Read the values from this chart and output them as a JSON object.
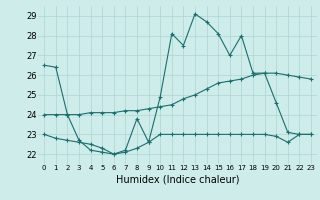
{
  "title": "",
  "xlabel": "Humidex (Indice chaleur)",
  "ylabel": "",
  "background_color": "#ceecea",
  "grid_color": "#aed4d2",
  "line_color": "#1a6e6e",
  "x_ticks": [
    0,
    1,
    2,
    3,
    4,
    5,
    6,
    7,
    8,
    9,
    10,
    11,
    12,
    13,
    14,
    15,
    16,
    17,
    18,
    19,
    20,
    21,
    22,
    23
  ],
  "ylim": [
    21.5,
    29.5
  ],
  "xlim": [
    -0.5,
    23.5
  ],
  "y_ticks": [
    22,
    23,
    24,
    25,
    26,
    27,
    28,
    29
  ],
  "series": [
    {
      "x": [
        0,
        1,
        2,
        3,
        4,
        5,
        6,
        7,
        8,
        9,
        10,
        11,
        12,
        13,
        14,
        15,
        16,
        17,
        18,
        19,
        20,
        21,
        22,
        23
      ],
      "y": [
        26.5,
        26.4,
        24.0,
        22.7,
        22.2,
        22.1,
        22.0,
        22.2,
        23.8,
        22.6,
        24.9,
        28.1,
        27.5,
        29.1,
        28.7,
        28.1,
        27.0,
        28.0,
        26.1,
        26.1,
        24.6,
        23.1,
        23.0,
        23.0
      ]
    },
    {
      "x": [
        0,
        1,
        2,
        3,
        4,
        5,
        6,
        7,
        8,
        9,
        10,
        11,
        12,
        13,
        14,
        15,
        16,
        17,
        18,
        19,
        20,
        21,
        22,
        23
      ],
      "y": [
        24.0,
        24.0,
        24.0,
        24.0,
        24.1,
        24.1,
        24.1,
        24.2,
        24.2,
        24.3,
        24.4,
        24.5,
        24.8,
        25.0,
        25.3,
        25.6,
        25.7,
        25.8,
        26.0,
        26.1,
        26.1,
        26.0,
        25.9,
        25.8
      ]
    },
    {
      "x": [
        0,
        1,
        2,
        3,
        4,
        5,
        6,
        7,
        8,
        9,
        10,
        11,
        12,
        13,
        14,
        15,
        16,
        17,
        18,
        19,
        20,
        21,
        22,
        23
      ],
      "y": [
        23.0,
        22.8,
        22.7,
        22.6,
        22.5,
        22.3,
        22.0,
        22.1,
        22.3,
        22.6,
        23.0,
        23.0,
        23.0,
        23.0,
        23.0,
        23.0,
        23.0,
        23.0,
        23.0,
        23.0,
        22.9,
        22.6,
        23.0,
        23.0
      ]
    }
  ]
}
